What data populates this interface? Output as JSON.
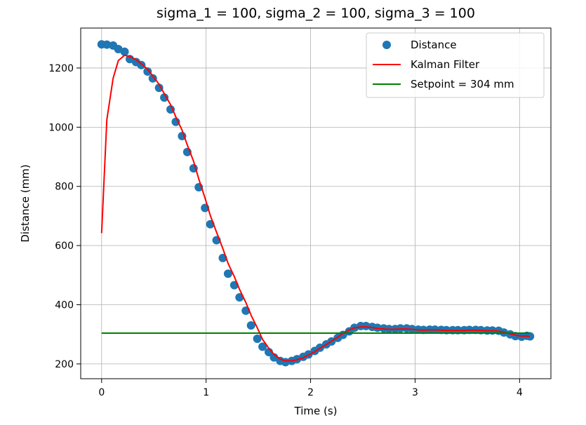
{
  "chart_data": {
    "type": "scatter",
    "title": "sigma_1 = 100, sigma_2 = 100, sigma_3 = 100",
    "xlabel": "Time (s)",
    "ylabel": "Distance (mm)",
    "xlim": [
      -0.2,
      4.3
    ],
    "ylim": [
      150,
      1335
    ],
    "xticks": [
      0,
      1,
      2,
      3,
      4
    ],
    "yticks": [
      200,
      400,
      600,
      800,
      1000,
      1200
    ],
    "grid": true,
    "legend_position": "top-right",
    "series": [
      {
        "name": "Distance",
        "kind": "scatter",
        "color": "#1f77b4",
        "points": [
          [
            0.0,
            1280
          ],
          [
            0.05,
            1279
          ],
          [
            0.11,
            1276
          ],
          [
            0.16,
            1264
          ],
          [
            0.22,
            1255
          ],
          [
            0.27,
            1230
          ],
          [
            0.33,
            1220
          ],
          [
            0.38,
            1210
          ],
          [
            0.44,
            1188
          ],
          [
            0.49,
            1165
          ],
          [
            0.55,
            1133
          ],
          [
            0.6,
            1100
          ],
          [
            0.66,
            1060
          ],
          [
            0.71,
            1018
          ],
          [
            0.77,
            970
          ],
          [
            0.82,
            916
          ],
          [
            0.88,
            861
          ],
          [
            0.93,
            797
          ],
          [
            0.99,
            727
          ],
          [
            1.04,
            672
          ],
          [
            1.1,
            618
          ],
          [
            1.16,
            558
          ],
          [
            1.21,
            505
          ],
          [
            1.27,
            466
          ],
          [
            1.32,
            425
          ],
          [
            1.38,
            380
          ],
          [
            1.43,
            330
          ],
          [
            1.49,
            285
          ],
          [
            1.54,
            258
          ],
          [
            1.6,
            240
          ],
          [
            1.65,
            222
          ],
          [
            1.71,
            210
          ],
          [
            1.76,
            206
          ],
          [
            1.82,
            210
          ],
          [
            1.87,
            216
          ],
          [
            1.93,
            224
          ],
          [
            1.98,
            232
          ],
          [
            2.04,
            244
          ],
          [
            2.09,
            255
          ],
          [
            2.15,
            266
          ],
          [
            2.2,
            276
          ],
          [
            2.26,
            288
          ],
          [
            2.31,
            298
          ],
          [
            2.37,
            310
          ],
          [
            2.42,
            322
          ],
          [
            2.48,
            328
          ],
          [
            2.53,
            328
          ],
          [
            2.59,
            325
          ],
          [
            2.64,
            322
          ],
          [
            2.7,
            320
          ],
          [
            2.75,
            318
          ],
          [
            2.81,
            318
          ],
          [
            2.86,
            320
          ],
          [
            2.92,
            320
          ],
          [
            2.97,
            318
          ],
          [
            3.03,
            316
          ],
          [
            3.08,
            315
          ],
          [
            3.14,
            316
          ],
          [
            3.19,
            316
          ],
          [
            3.25,
            315
          ],
          [
            3.3,
            314
          ],
          [
            3.36,
            314
          ],
          [
            3.41,
            314
          ],
          [
            3.47,
            314
          ],
          [
            3.52,
            315
          ],
          [
            3.58,
            315
          ],
          [
            3.63,
            314
          ],
          [
            3.69,
            313
          ],
          [
            3.74,
            313
          ],
          [
            3.8,
            312
          ],
          [
            3.85,
            306
          ],
          [
            3.91,
            300
          ],
          [
            3.96,
            294
          ],
          [
            4.02,
            292
          ],
          [
            4.07,
            295
          ],
          [
            4.1,
            293
          ]
        ]
      },
      {
        "name": "Kalman Filter",
        "kind": "line",
        "color": "#ff0000",
        "points": [
          [
            0.0,
            642
          ],
          [
            0.05,
            1025
          ],
          [
            0.11,
            1165
          ],
          [
            0.16,
            1225
          ],
          [
            0.22,
            1243
          ],
          [
            0.27,
            1239
          ],
          [
            0.33,
            1228
          ],
          [
            0.38,
            1214
          ],
          [
            0.44,
            1196
          ],
          [
            0.49,
            1173
          ],
          [
            0.55,
            1145
          ],
          [
            0.6,
            1113
          ],
          [
            0.66,
            1076
          ],
          [
            0.71,
            1035
          ],
          [
            0.77,
            990
          ],
          [
            0.82,
            940
          ],
          [
            0.88,
            885
          ],
          [
            0.93,
            825
          ],
          [
            0.99,
            760
          ],
          [
            1.04,
            702
          ],
          [
            1.1,
            645
          ],
          [
            1.16,
            590
          ],
          [
            1.21,
            540
          ],
          [
            1.27,
            495
          ],
          [
            1.32,
            452
          ],
          [
            1.38,
            408
          ],
          [
            1.43,
            365
          ],
          [
            1.49,
            322
          ],
          [
            1.54,
            283
          ],
          [
            1.6,
            253
          ],
          [
            1.65,
            232
          ],
          [
            1.71,
            216
          ],
          [
            1.76,
            210
          ],
          [
            1.82,
            210
          ],
          [
            1.87,
            214
          ],
          [
            1.93,
            221
          ],
          [
            1.98,
            230
          ],
          [
            2.04,
            241
          ],
          [
            2.09,
            253
          ],
          [
            2.15,
            265
          ],
          [
            2.2,
            277
          ],
          [
            2.26,
            290
          ],
          [
            2.31,
            303
          ],
          [
            2.37,
            315
          ],
          [
            2.42,
            322
          ],
          [
            2.48,
            325
          ],
          [
            2.53,
            325
          ],
          [
            2.59,
            323
          ],
          [
            2.64,
            320
          ],
          [
            2.7,
            318
          ],
          [
            2.75,
            317
          ],
          [
            2.81,
            317
          ],
          [
            2.86,
            318
          ],
          [
            2.92,
            318
          ],
          [
            2.97,
            317
          ],
          [
            3.03,
            315
          ],
          [
            3.08,
            314
          ],
          [
            3.14,
            315
          ],
          [
            3.19,
            315
          ],
          [
            3.25,
            314
          ],
          [
            3.3,
            313
          ],
          [
            3.36,
            313
          ],
          [
            3.41,
            313
          ],
          [
            3.47,
            313
          ],
          [
            3.52,
            314
          ],
          [
            3.58,
            314
          ],
          [
            3.63,
            313
          ],
          [
            3.69,
            312
          ],
          [
            3.74,
            312
          ],
          [
            3.8,
            311
          ],
          [
            3.85,
            307
          ],
          [
            3.91,
            302
          ],
          [
            3.96,
            297
          ],
          [
            4.02,
            294
          ],
          [
            4.07,
            294
          ],
          [
            4.1,
            293
          ]
        ]
      },
      {
        "name": "Setpoint = 304 mm",
        "kind": "line",
        "color": "#008000",
        "points": [
          [
            0.0,
            304
          ],
          [
            4.1,
            304
          ]
        ]
      }
    ]
  }
}
